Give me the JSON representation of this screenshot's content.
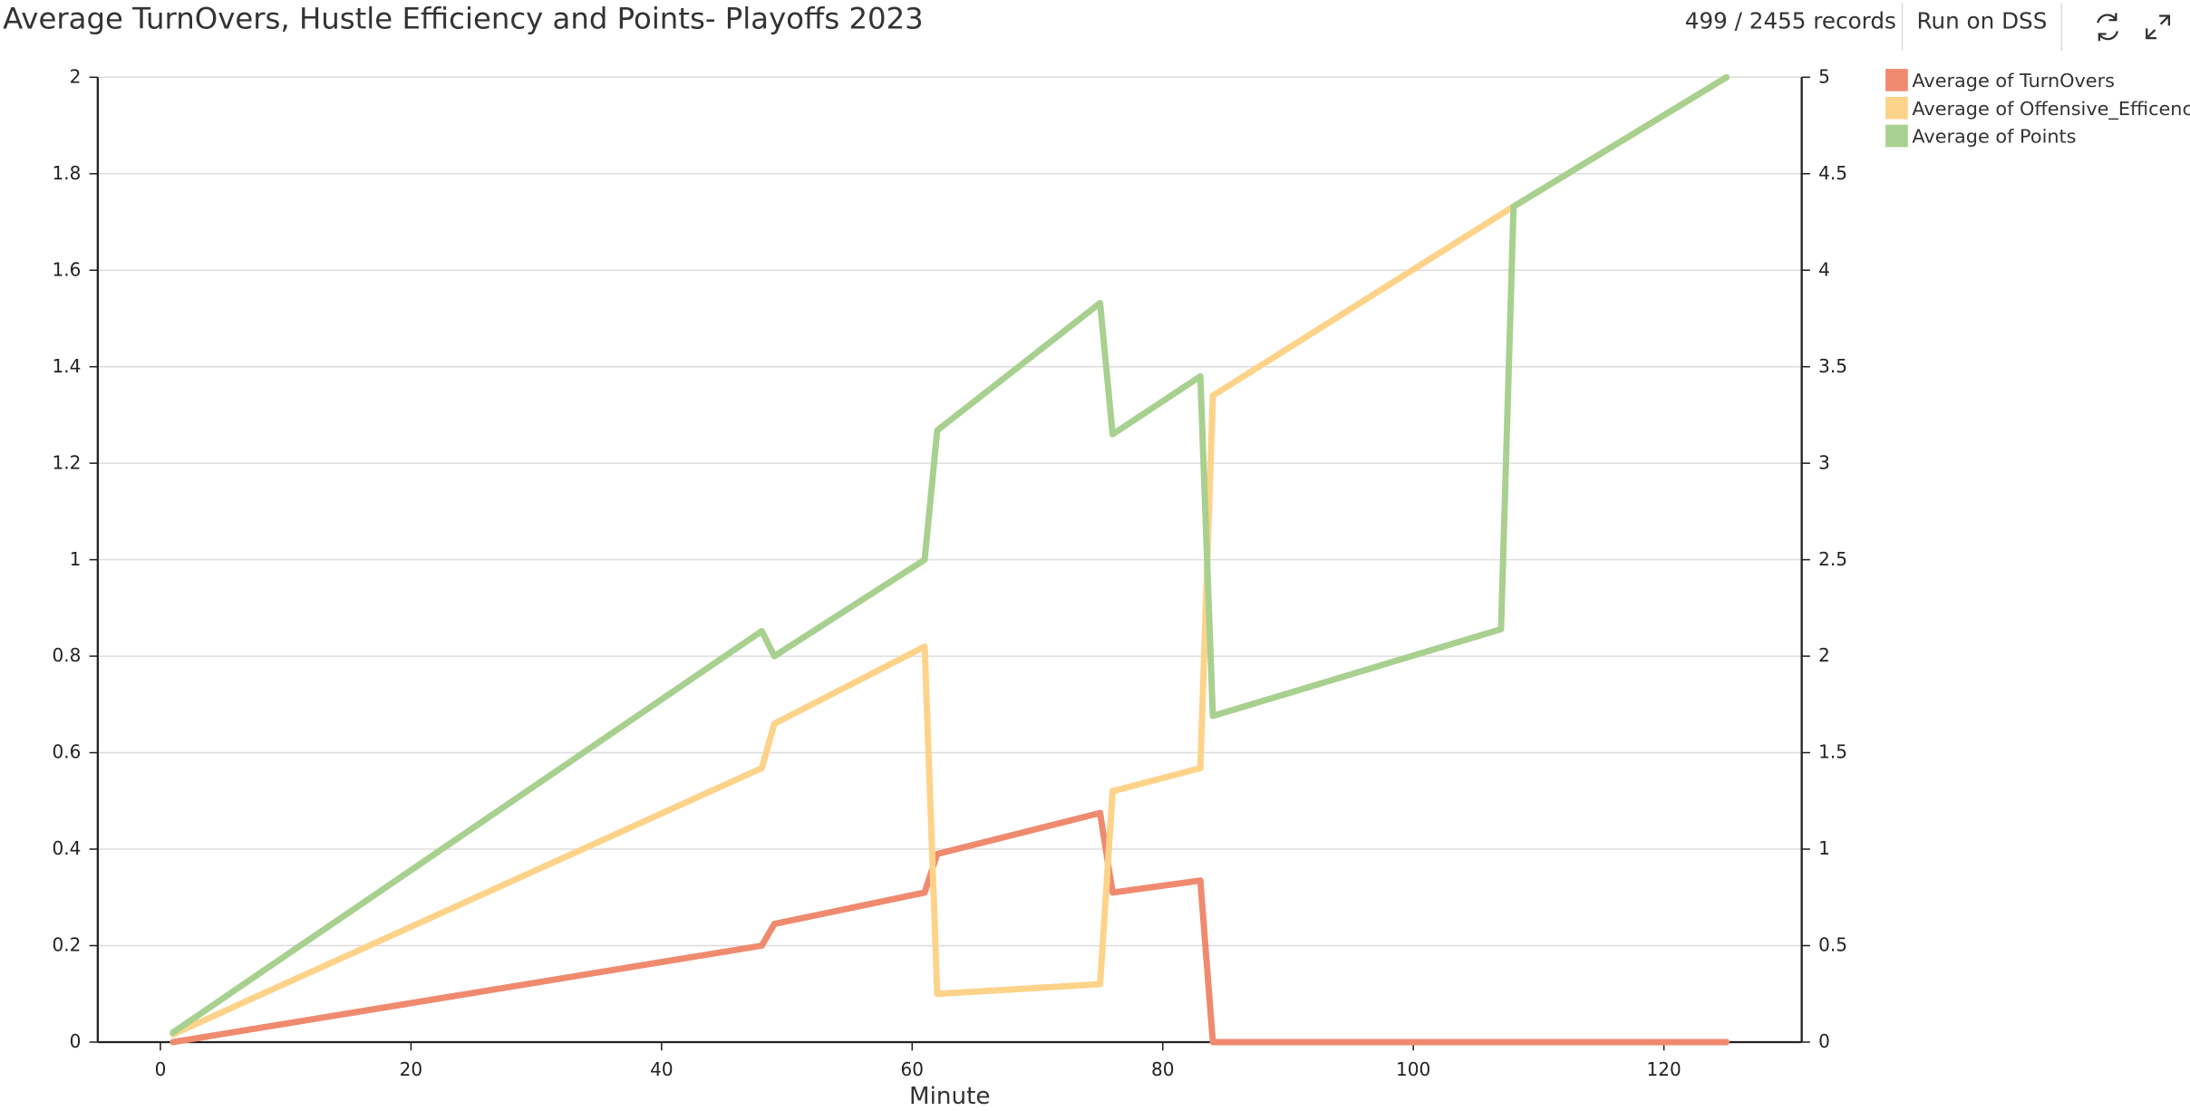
{
  "header": {
    "records": "499 / 2455 records",
    "run_button": "Run on DSS"
  },
  "chart_data": {
    "type": "line",
    "title": "Average TurnOvers, Hustle Efficiency and Points- Playoffs 2023",
    "x_label": "Minute",
    "x": [
      1,
      48,
      49,
      61,
      62,
      75,
      76,
      83,
      84,
      107,
      108,
      125
    ],
    "xlim": [
      -5,
      131
    ],
    "xticks": [
      0,
      20,
      40,
      60,
      80,
      100,
      120
    ],
    "ylim": [
      0,
      2
    ],
    "yticks": [
      0,
      0.2,
      0.4,
      0.6,
      0.8,
      1,
      1.2,
      1.4,
      1.6,
      1.8,
      2
    ],
    "y2lim": [
      0,
      5
    ],
    "y2ticks": [
      0,
      0.5,
      1,
      1.5,
      2,
      2.5,
      3,
      3.5,
      4,
      4.5,
      5
    ],
    "grid": true,
    "legend": "top-right",
    "series": [
      {
        "name": "Average of TurnOvers",
        "color": "#ef8a6f",
        "values": [
          0,
          0.2,
          0.245,
          0.31,
          0.39,
          0.475,
          0.31,
          0.335,
          0,
          0,
          0,
          0
        ]
      },
      {
        "name": "Average of Offensive_Efficency",
        "color": "#fdd38a",
        "axis": "y2",
        "values": [
          0.04,
          1.42,
          1.65,
          2.05,
          0.25,
          0.3,
          1.3,
          1.42,
          3.35,
          4.29,
          4.33,
          5
        ]
      },
      {
        "name": "Average of Points",
        "color": "#a8d08f",
        "axis": "y2",
        "values": [
          0.05,
          2.13,
          2.0,
          2.5,
          3.17,
          3.83,
          3.15,
          3.45,
          1.69,
          2.14,
          4.33,
          5
        ]
      }
    ]
  }
}
